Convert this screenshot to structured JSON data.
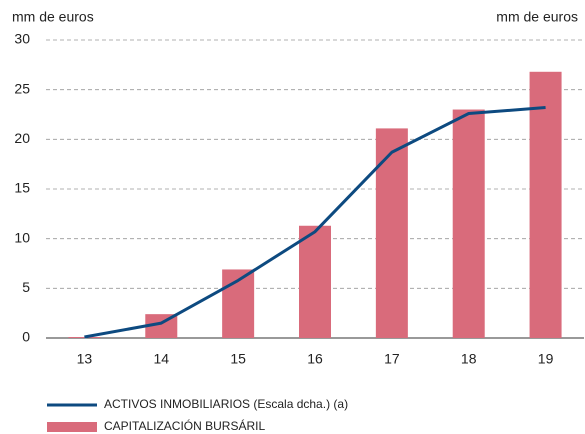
{
  "chart_data": {
    "type": "bar_line",
    "y_label": "mm de euros",
    "y2_label": "mm de euros",
    "categories": [
      "13",
      "14",
      "15",
      "16",
      "17",
      "18",
      "19"
    ],
    "series": [
      {
        "name": "ACTIVOS INMOBILIARIOS (Escala dcha.) (a)",
        "type": "line",
        "color": "#0d4a80",
        "values": [
          0.1,
          1.5,
          5.8,
          10.7,
          18.7,
          22.6,
          23.2
        ]
      },
      {
        "name": "CAPITALIZACIÓN BURSÁRIL",
        "type": "bar",
        "color": "#d96b7b",
        "values": [
          0.1,
          2.4,
          6.9,
          11.3,
          21.1,
          23.0,
          26.8
        ]
      }
    ],
    "ylim": [
      0,
      30
    ],
    "yticks": [
      0,
      5,
      10,
      15,
      20,
      25,
      30
    ],
    "grid": true
  }
}
